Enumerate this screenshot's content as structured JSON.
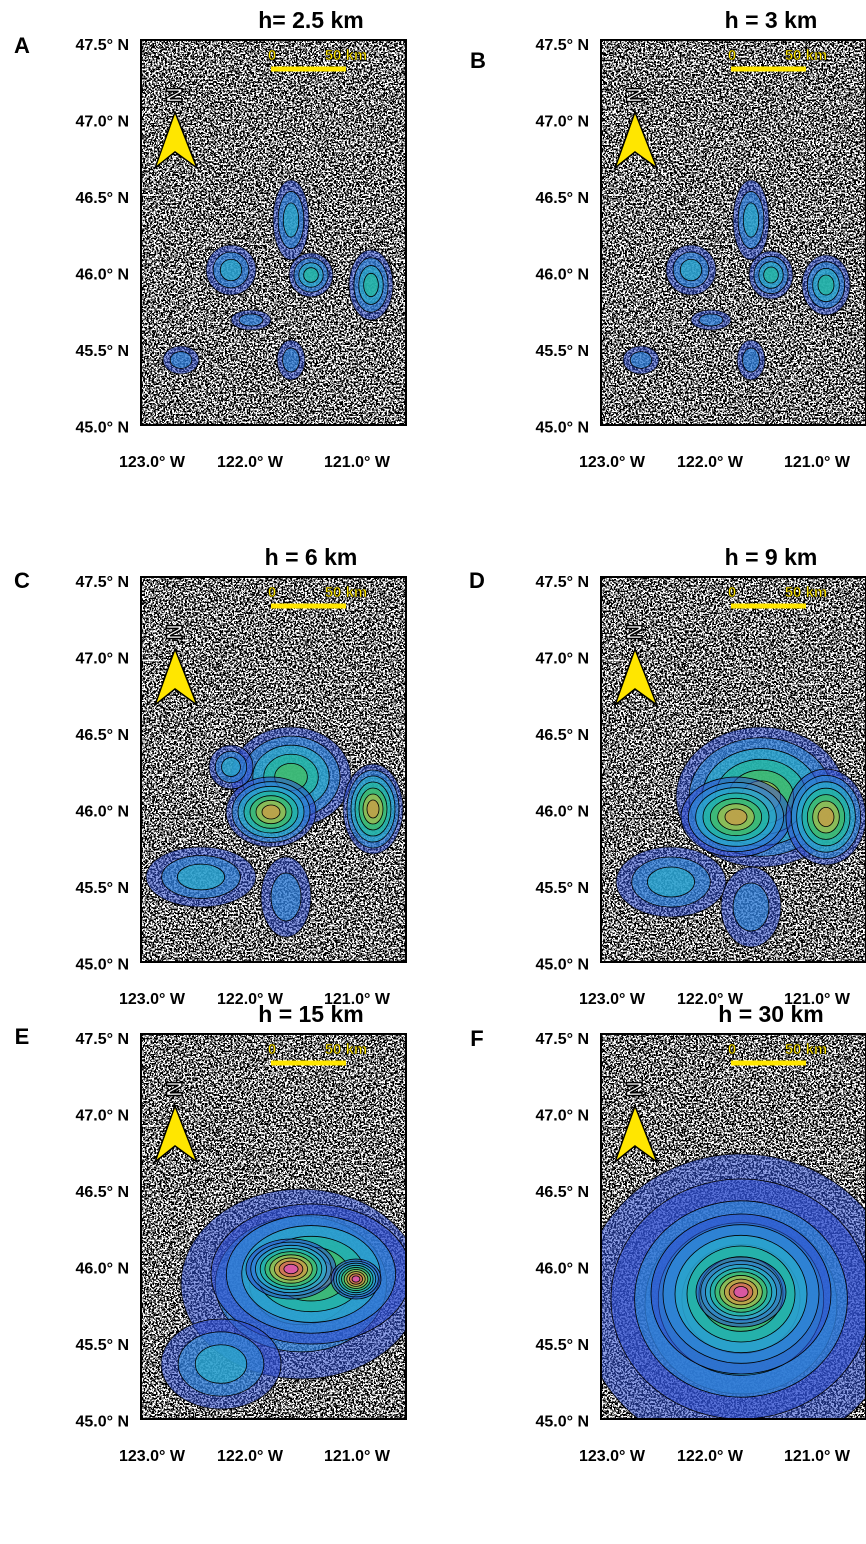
{
  "panels": [
    {
      "letter": "A",
      "title": "h= 2.5 km"
    },
    {
      "letter": "B",
      "title": "h = 3 km"
    },
    {
      "letter": "C",
      "title": "h = 6 km"
    },
    {
      "letter": "D",
      "title": "h = 9 km"
    },
    {
      "letter": "E",
      "title": "h = 15 km"
    },
    {
      "letter": "F",
      "title": "h = 30 km"
    }
  ],
  "axes": {
    "lat_labels": [
      "47.5° N",
      "47.0° N",
      "46.5° N",
      "46.0° N",
      "45.5° N",
      "45.0° N"
    ],
    "lon_labels": [
      "123.0° W",
      "122.0° W",
      "121.0° W"
    ]
  },
  "scale_bar": {
    "start": "0",
    "end": "50 km"
  },
  "north_arrow": "N"
}
